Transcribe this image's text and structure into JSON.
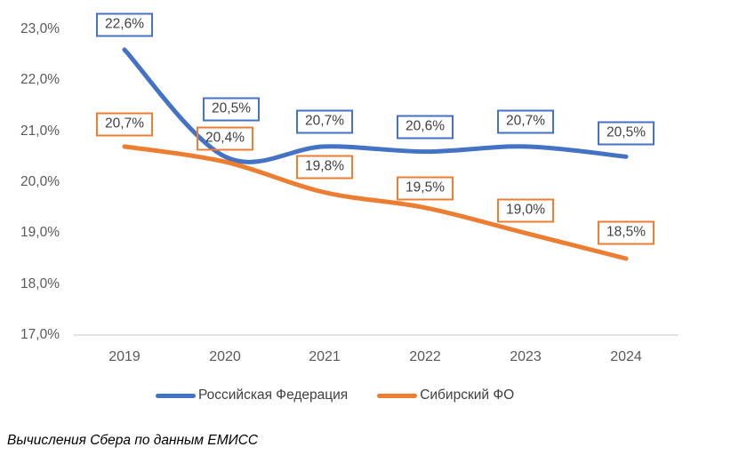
{
  "caption": "Вычисления Сбера по данным ЕМИСС",
  "chart_data": {
    "type": "line",
    "categories": [
      "2019",
      "2020",
      "2021",
      "2022",
      "2023",
      "2024"
    ],
    "series": [
      {
        "name": "Российская Федерация",
        "color": "#4472C4",
        "values": [
          22.6,
          20.5,
          20.7,
          20.6,
          20.7,
          20.5
        ],
        "labels": [
          "22,6%",
          "20,5%",
          "20,7%",
          "20,6%",
          "20,7%",
          "20,5%"
        ]
      },
      {
        "name": "Сибирский ФО",
        "color": "#ED7D31",
        "values": [
          20.7,
          20.4,
          19.8,
          19.5,
          19.0,
          18.5
        ],
        "labels": [
          "20,7%",
          "20,4%",
          "19,8%",
          "19,5%",
          "19,0%",
          "18,5%"
        ]
      }
    ],
    "yticks": [
      "23,0%",
      "22,0%",
      "21,0%",
      "20,0%",
      "19,0%",
      "18,0%",
      "17,0%"
    ],
    "ylim": [
      17,
      23
    ],
    "grid": false,
    "smooth_lines": true,
    "legend_position": "bottom",
    "axis_color": "#D9D9D9",
    "tick_color": "#595959",
    "label_text_color": "#404040"
  }
}
